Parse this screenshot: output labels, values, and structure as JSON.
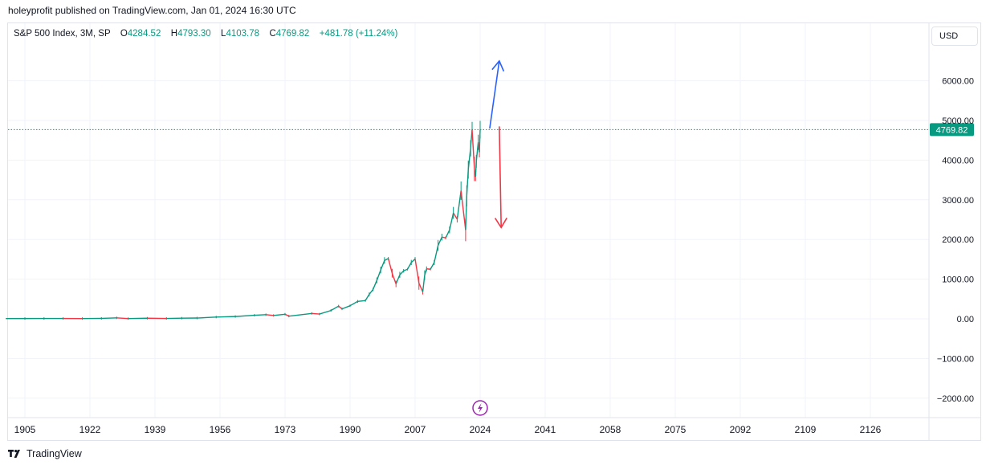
{
  "header": {
    "publish_text": "holeyprofit published on TradingView.com, Jan 01, 2024 16:30 UTC"
  },
  "legend": {
    "symbol": "S&P 500 Index, 3M, SP",
    "open_label": "O",
    "open": "4284.52",
    "high_label": "H",
    "high": "4793.30",
    "low_label": "L",
    "low": "4103.78",
    "close_label": "C",
    "close": "4769.82",
    "change": "+481.78 (+11.24%)"
  },
  "currency": "USD",
  "footer": {
    "brand": "TradingView"
  },
  "colors": {
    "up": "#089981",
    "down": "#f23645",
    "grid": "#f0f3fa",
    "text": "#131722",
    "blue_arrow": "#2962ff",
    "red_arrow": "#f23645",
    "price_tag": "#089981",
    "bolt": "#9c27b0"
  },
  "icons": {
    "event": "lightning-bolt-icon",
    "logo": "tradingview-logo-icon"
  },
  "chart_data": {
    "type": "line",
    "title": "S&P 500 Index, 3M, SP",
    "xlabel": "",
    "ylabel": "USD",
    "x_ticks": [
      "1905",
      "1922",
      "1939",
      "1956",
      "1973",
      "1990",
      "2007",
      "2024",
      "2041",
      "2058",
      "2075",
      "2092",
      "2109",
      "2126"
    ],
    "y_ticks": [
      "6000.00",
      "5000.00",
      "4000.00",
      "3000.00",
      "2000.00",
      "1000.00",
      "0.00",
      "−1000.00",
      "−2000.00"
    ],
    "xlim": [
      1900,
      2142
    ],
    "ylim": [
      -2500,
      7000
    ],
    "grid": true,
    "last_price": 4769.82,
    "last_price_label": "4769.82",
    "series": [
      {
        "name": "S&P 500 Index",
        "points": [
          [
            1900,
            6.5
          ],
          [
            1905,
            7.5
          ],
          [
            1910,
            8
          ],
          [
            1915,
            8.5
          ],
          [
            1920,
            7
          ],
          [
            1925,
            11
          ],
          [
            1929,
            25
          ],
          [
            1932,
            7
          ],
          [
            1937,
            15
          ],
          [
            1942,
            9
          ],
          [
            1946,
            17
          ],
          [
            1950,
            20
          ],
          [
            1955,
            45
          ],
          [
            1960,
            58
          ],
          [
            1965,
            90
          ],
          [
            1968,
            104
          ],
          [
            1970,
            85
          ],
          [
            1973,
            116
          ],
          [
            1974,
            68
          ],
          [
            1980,
            135
          ],
          [
            1982,
            120
          ],
          [
            1985,
            210
          ],
          [
            1987,
            320
          ],
          [
            1987.9,
            250
          ],
          [
            1990,
            330
          ],
          [
            1992,
            440
          ],
          [
            1994,
            460
          ],
          [
            1995,
            615
          ],
          [
            1996,
            740
          ],
          [
            1997,
            970
          ],
          [
            1998,
            1230
          ],
          [
            1999,
            1470
          ],
          [
            2000,
            1520
          ],
          [
            2001,
            1150
          ],
          [
            2002,
            880
          ],
          [
            2003,
            1110
          ],
          [
            2004,
            1210
          ],
          [
            2005,
            1250
          ],
          [
            2006,
            1420
          ],
          [
            2007,
            1510
          ],
          [
            2008,
            900
          ],
          [
            2009,
            680
          ],
          [
            2009.5,
            1100
          ],
          [
            2010,
            1260
          ],
          [
            2011,
            1250
          ],
          [
            2012,
            1420
          ],
          [
            2013,
            1850
          ],
          [
            2014,
            2060
          ],
          [
            2015,
            2040
          ],
          [
            2016,
            2240
          ],
          [
            2017,
            2670
          ],
          [
            2018,
            2510
          ],
          [
            2019,
            3230
          ],
          [
            2020.2,
            2240
          ],
          [
            2020.5,
            3100
          ],
          [
            2020.9,
            3760
          ],
          [
            2021.5,
            4300
          ],
          [
            2021.9,
            4770
          ],
          [
            2022.5,
            3780
          ],
          [
            2022.8,
            3580
          ],
          [
            2023,
            3970
          ],
          [
            2023.5,
            4450
          ],
          [
            2023.8,
            4200
          ],
          [
            2024,
            4769.82
          ]
        ]
      }
    ],
    "annotations": [
      {
        "type": "arrow",
        "direction": "up",
        "color": "#2962ff",
        "from": [
          2026.5,
          4800
        ],
        "to": [
          2029,
          6500
        ]
      },
      {
        "type": "arrow",
        "direction": "down",
        "color": "#f23645",
        "from": [
          2029,
          4850
        ],
        "to": [
          2029.5,
          2300
        ]
      }
    ]
  }
}
